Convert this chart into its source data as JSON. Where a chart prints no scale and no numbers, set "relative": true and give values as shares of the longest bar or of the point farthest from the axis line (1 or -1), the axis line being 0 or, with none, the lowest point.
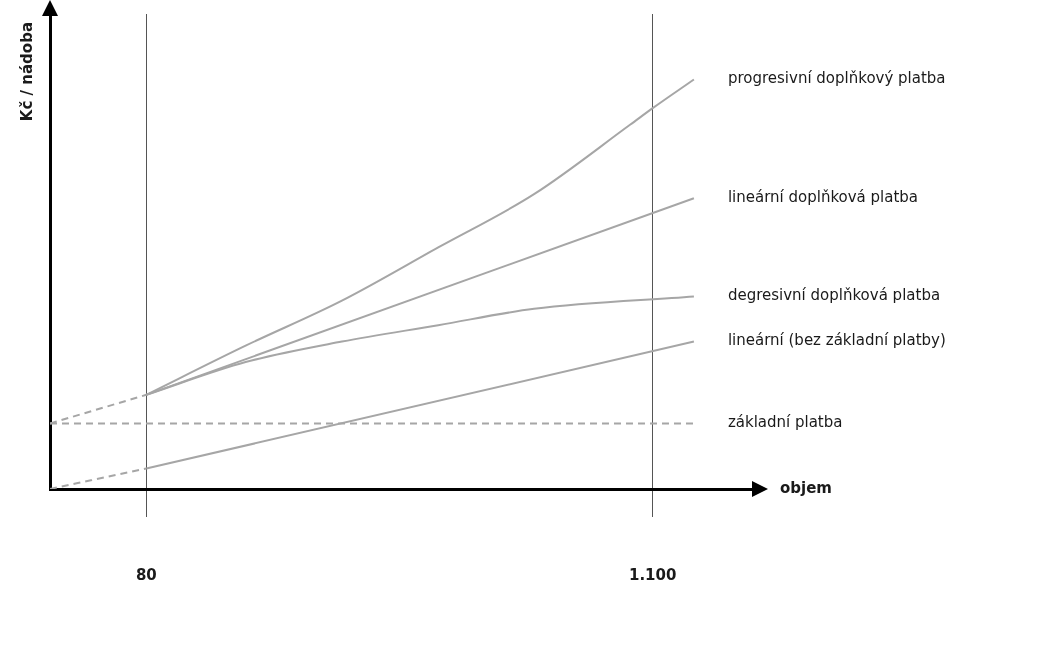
{
  "chart_data": {
    "type": "line",
    "xlabel": "objem",
    "ylabel": "Kč / nádoba",
    "relative": true,
    "marker": "none",
    "grid": "x",
    "legend": false,
    "tick_labels": "x",
    "xlim": [
      -114,
      1300
    ],
    "xticks": [
      80,
      {
        "value": 1100,
        "label": "1.100"
      }
    ],
    "series": [
      {
        "name": "progresivní doplňkový platba",
        "color": "#a6a6a6",
        "line_style": "solid",
        "x": [
          80,
          280,
          474,
          668,
          861,
          1055,
          1100,
          1183
        ],
        "values": [
          0.23,
          0.35,
          0.46,
          0.59,
          0.72,
          0.89,
          0.93,
          1.0
        ]
      },
      {
        "name": "lineární doplňková platba",
        "color": "#a6a6a6",
        "line_style": "solid",
        "x": [
          80,
          1183
        ],
        "values": [
          0.23,
          0.71
        ]
      },
      {
        "name": "degresivní doplňková platba",
        "color": "#a6a6a6",
        "line_style": "solid",
        "x": [
          80,
          280,
          474,
          668,
          861,
          1183
        ],
        "values": [
          0.23,
          0.31,
          0.36,
          0.4,
          0.44,
          0.47
        ]
      },
      {
        "name": "lineární (bez základní platby)",
        "color": "#a6a6a6",
        "line_style": "solid",
        "x": [
          80,
          1183
        ],
        "values": [
          0.05,
          0.36
        ]
      },
      {
        "name": "základní platba",
        "color": "#a6a6a6",
        "line_style": "dashed",
        "x": [
          -114,
          1183
        ],
        "values": [
          0.16,
          0.16
        ]
      },
      {
        "color": "#a6a6a6",
        "line_style": "dashed",
        "x": [
          -114,
          80
        ],
        "values": [
          0.16,
          0.23
        ]
      },
      {
        "color": "#a6a6a6",
        "line_style": "dashed",
        "x": [
          -114,
          80
        ],
        "values": [
          0,
          0.05
        ]
      }
    ]
  }
}
